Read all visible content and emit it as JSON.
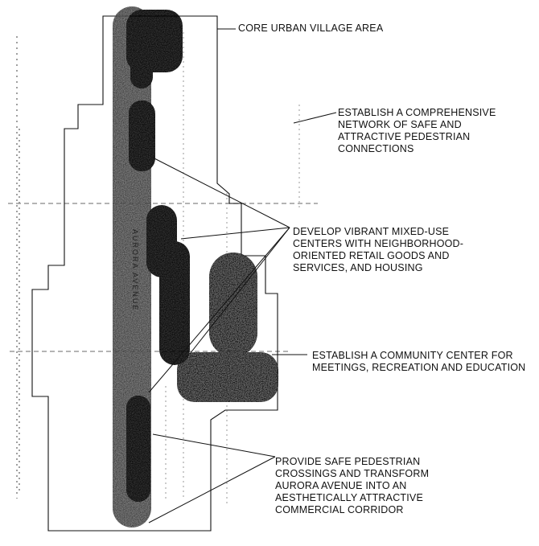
{
  "labels": {
    "core": "CORE URBAN VILLAGE AREA",
    "network": [
      "ESTABLISH A COMPREHENSIVE",
      "NETWORK OF SAFE AND",
      "ATTRACTIVE  PEDESTRIAN",
      "CONNECTIONS"
    ],
    "mixed_use": [
      "DEVELOP VIBRANT  MIXED-USE",
      "CENTERS WITH NEIGHBORHOOD-",
      "ORIENTED RETAIL GOODS AND",
      "SERVICES, AND HOUSING"
    ],
    "community": [
      "ESTABLISH A COMMUNITY CENTER FOR",
      "MEETINGS, RECREATION AND EDUCATION"
    ],
    "crossings": [
      "PROVIDE  SAFE  PEDESTRIAN",
      "CROSSINGS AND TRANSFORM",
      "AURORA AVENUE  INTO  AN",
      "AESTHETICALLY ATTRACTIVE",
      "COMMERCIAL  CORRIDOR"
    ],
    "road": "AURORA AVENUE"
  },
  "colors": {
    "line": "#111111",
    "corridor": "#6b6b6b",
    "dark_node": "#141414",
    "gray_node": "#5a5a5a",
    "dashed": "#888888"
  }
}
